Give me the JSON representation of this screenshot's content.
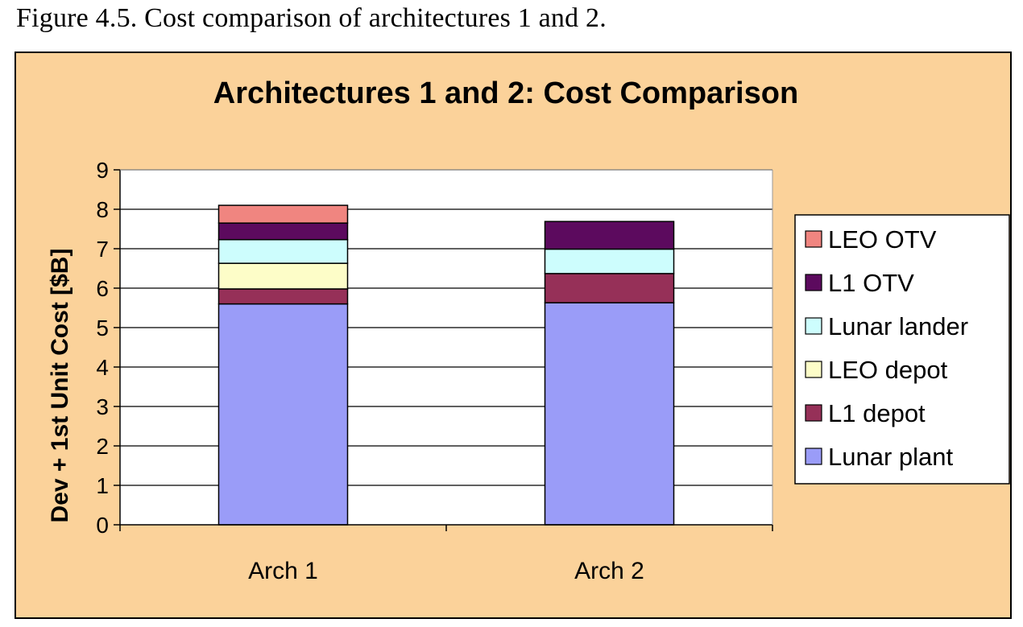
{
  "figure_caption": "Figure 4.5.  Cost comparison of architectures 1 and 2.",
  "colors": {
    "background": "#fbd29a",
    "plot_area": "#ffffff",
    "LEO OTV": "#f08580",
    "L1 OTV": "#5c0a5e",
    "Lunar lander": "#cdfdfd",
    "LEO depot": "#fdfdc8",
    "L1 depot": "#963058",
    "Lunar plant": "#9a9cf8"
  },
  "chart_data": {
    "type": "bar",
    "stacked": true,
    "title": "Architectures 1 and 2: Cost Comparison",
    "xlabel": "",
    "ylabel": "Dev + 1st Unit Cost [$B]",
    "ylim": [
      0,
      9
    ],
    "yticks": [
      "0",
      "1",
      "2",
      "3",
      "4",
      "5",
      "6",
      "7",
      "8",
      "9"
    ],
    "categories": [
      "Arch 1",
      "Arch 2"
    ],
    "grid": true,
    "legend_position": "right",
    "series": [
      {
        "name": "Lunar plant",
        "values": [
          5.6,
          5.63
        ]
      },
      {
        "name": "L1 depot",
        "values": [
          0.38,
          0.74
        ]
      },
      {
        "name": "LEO depot",
        "values": [
          0.65,
          0
        ]
      },
      {
        "name": "Lunar lander",
        "values": [
          0.6,
          0.62
        ]
      },
      {
        "name": "L1 OTV",
        "values": [
          0.42,
          0.7
        ]
      },
      {
        "name": "LEO OTV",
        "values": [
          0.45,
          0
        ]
      }
    ],
    "legend_order": [
      "LEO OTV",
      "L1 OTV",
      "Lunar lander",
      "LEO depot",
      "L1 depot",
      "Lunar plant"
    ]
  }
}
